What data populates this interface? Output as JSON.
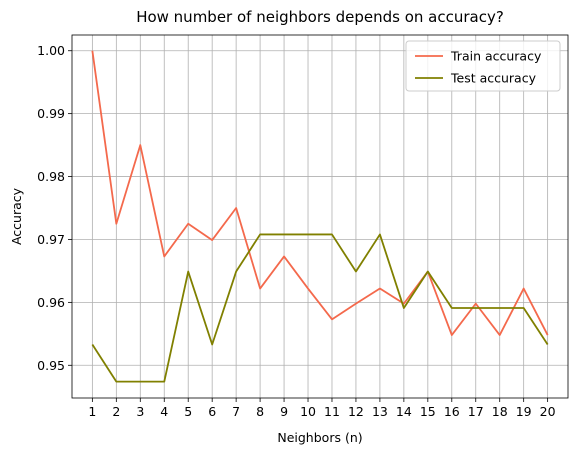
{
  "chart_data": {
    "type": "line",
    "title": "How number of neighbors depends on accuracy?",
    "xlabel": "Neighbors (n)",
    "ylabel": "Accuracy",
    "x": [
      1,
      2,
      3,
      4,
      5,
      6,
      7,
      8,
      9,
      10,
      11,
      12,
      13,
      14,
      15,
      16,
      17,
      18,
      19,
      20
    ],
    "xlim": [
      0.15,
      20.85
    ],
    "ylim": [
      0.9448,
      1.0025
    ],
    "yticks": [
      0.95,
      0.96,
      0.97,
      0.98,
      0.99,
      1.0
    ],
    "ytick_labels": [
      "0.95",
      "0.96",
      "0.97",
      "0.98",
      "0.99",
      "1.00"
    ],
    "grid": true,
    "legend_position": "top-right",
    "series": [
      {
        "name": "Train accuracy",
        "color": "#f4694c",
        "values": [
          1.0,
          0.9725,
          0.985,
          0.9673,
          0.9725,
          0.9699,
          0.975,
          0.9622,
          0.9673,
          0.9622,
          0.9573,
          0.9598,
          0.9622,
          0.9598,
          0.9649,
          0.9548,
          0.9598,
          0.9548,
          0.9622,
          0.9548
        ]
      },
      {
        "name": "Test accuracy",
        "color": "#808000",
        "values": [
          0.9533,
          0.9474,
          0.9474,
          0.9474,
          0.9649,
          0.9533,
          0.9649,
          0.9708,
          0.9708,
          0.9708,
          0.9708,
          0.9649,
          0.9708,
          0.9591,
          0.9649,
          0.9591,
          0.9591,
          0.9591,
          0.9591,
          0.9533
        ]
      }
    ]
  }
}
